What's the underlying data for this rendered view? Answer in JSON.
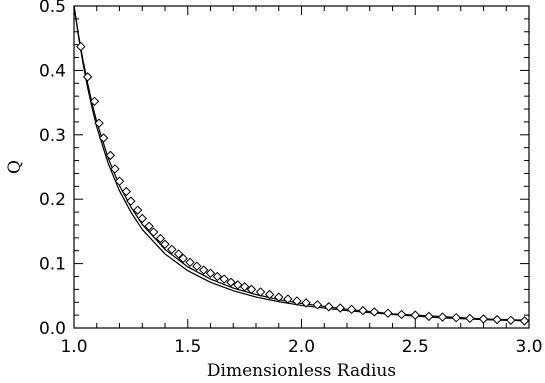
{
  "chart_data": {
    "type": "line",
    "title": "",
    "xlabel": "Dimensionless Radius",
    "ylabel": "Q",
    "xlim": [
      1.0,
      3.0
    ],
    "ylim": [
      0.0,
      0.5
    ],
    "grid": false,
    "x_ticks": [
      1.0,
      1.5,
      2.0,
      2.5,
      3.0
    ],
    "x_tick_labels": [
      "1.0",
      "1.5",
      "2.0",
      "2.5",
      "3.0"
    ],
    "y_ticks": [
      0.0,
      0.1,
      0.2,
      0.3,
      0.4,
      0.5
    ],
    "y_tick_labels": [
      "0.0",
      "0.1",
      "0.2",
      "0.3",
      "0.4",
      "0.5"
    ],
    "series": [
      {
        "style": "solid-line",
        "x": [
          1.0,
          1.02,
          1.04,
          1.06,
          1.08,
          1.1,
          1.15,
          1.2,
          1.25,
          1.3,
          1.4,
          1.5,
          1.6,
          1.7,
          1.8,
          1.9,
          2.0,
          2.2,
          2.4,
          2.6,
          2.8,
          3.0
        ],
        "values": [
          0.5,
          0.452,
          0.41,
          0.373,
          0.341,
          0.312,
          0.256,
          0.213,
          0.18,
          0.153,
          0.115,
          0.089,
          0.071,
          0.058,
          0.048,
          0.041,
          0.035,
          0.027,
          0.021,
          0.016,
          0.013,
          0.011
        ]
      },
      {
        "style": "solid-line",
        "x": [
          1.0,
          1.02,
          1.04,
          1.06,
          1.08,
          1.1,
          1.15,
          1.2,
          1.25,
          1.3,
          1.4,
          1.5,
          1.6,
          1.7,
          1.8,
          1.9,
          2.0,
          2.2,
          2.4,
          2.6,
          2.8,
          3.0
        ],
        "values": [
          0.5,
          0.455,
          0.415,
          0.38,
          0.348,
          0.32,
          0.264,
          0.221,
          0.188,
          0.161,
          0.122,
          0.095,
          0.076,
          0.062,
          0.052,
          0.044,
          0.038,
          0.029,
          0.022,
          0.018,
          0.014,
          0.012
        ]
      },
      {
        "style": "open-diamond-markers",
        "x": [
          1.03,
          1.06,
          1.09,
          1.11,
          1.13,
          1.16,
          1.18,
          1.2,
          1.23,
          1.25,
          1.28,
          1.3,
          1.33,
          1.35,
          1.38,
          1.4,
          1.43,
          1.46,
          1.48,
          1.51,
          1.54,
          1.57,
          1.6,
          1.63,
          1.66,
          1.69,
          1.72,
          1.75,
          1.78,
          1.82,
          1.86,
          1.9,
          1.94,
          1.98,
          2.02,
          2.07,
          2.12,
          2.17,
          2.22,
          2.27,
          2.32,
          2.38,
          2.44,
          2.5,
          2.56,
          2.62,
          2.68,
          2.74,
          2.8,
          2.86,
          2.92,
          2.98
        ],
        "values": [
          0.437,
          0.39,
          0.352,
          0.318,
          0.295,
          0.268,
          0.247,
          0.228,
          0.212,
          0.197,
          0.183,
          0.17,
          0.158,
          0.149,
          0.139,
          0.13,
          0.122,
          0.115,
          0.108,
          0.102,
          0.096,
          0.09,
          0.085,
          0.08,
          0.076,
          0.071,
          0.067,
          0.064,
          0.06,
          0.056,
          0.052,
          0.048,
          0.045,
          0.042,
          0.039,
          0.036,
          0.033,
          0.031,
          0.029,
          0.027,
          0.025,
          0.023,
          0.021,
          0.02,
          0.018,
          0.017,
          0.016,
          0.015,
          0.014,
          0.013,
          0.012,
          0.011
        ]
      }
    ]
  }
}
